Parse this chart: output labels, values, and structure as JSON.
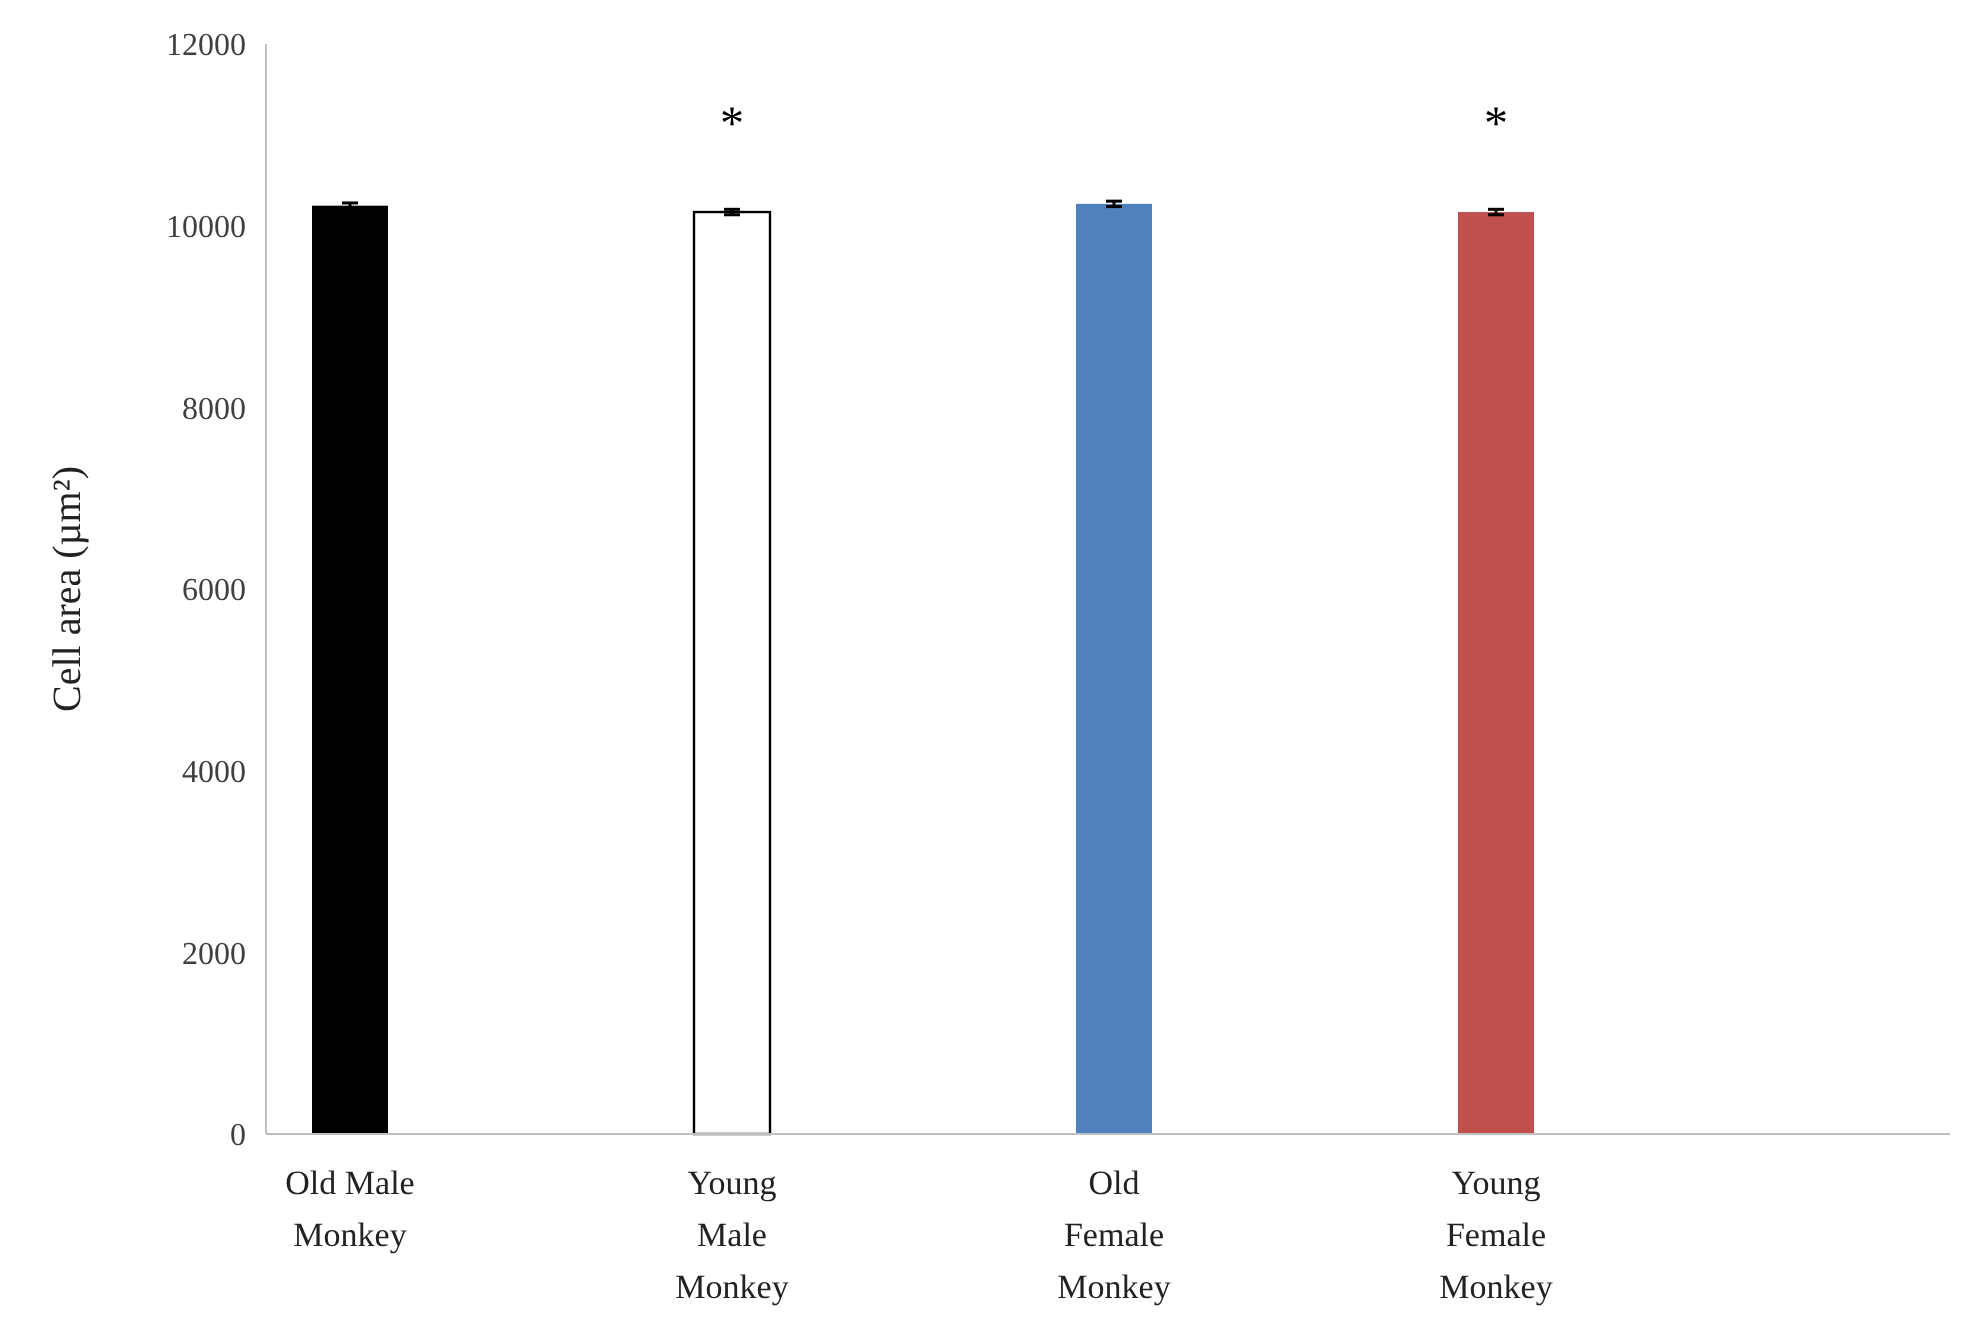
{
  "chart_data": {
    "type": "bar",
    "ylabel": "Cell area (µm²)",
    "categories": [
      "Old Male\nMonkey",
      "Young\nMale\nMonkey",
      "Old\nFemale\nMonkey",
      "Young\nFemale\nMonkey"
    ],
    "values": [
      10220,
      10150,
      10240,
      10150
    ],
    "colors": [
      "#000000",
      "#ffffff",
      "#4f81bd",
      "#c0504d"
    ],
    "errors": [
      30,
      30,
      30,
      30
    ],
    "ylim": [
      0,
      12000
    ],
    "yticks": [
      0,
      2000,
      4000,
      6000,
      8000,
      10000,
      12000
    ],
    "grid": false,
    "annotations": [
      {
        "text": "*",
        "x": "Young\nMale\nMonkey",
        "y": 10150
      },
      {
        "text": "*",
        "x": "Young\nFemale\nMonkey",
        "y": 10150
      }
    ]
  }
}
